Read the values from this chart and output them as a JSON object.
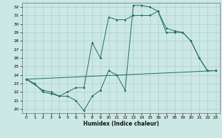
{
  "bg_color": "#cce8e5",
  "grid_color": "#aacfcc",
  "line_color": "#1a6b60",
  "xlabel": "Humidex (Indice chaleur)",
  "xlim": [
    -0.5,
    23.5
  ],
  "ylim": [
    19.5,
    32.5
  ],
  "xticks": [
    0,
    1,
    2,
    3,
    4,
    5,
    6,
    7,
    8,
    9,
    10,
    11,
    12,
    13,
    14,
    15,
    16,
    17,
    18,
    19,
    20,
    21,
    22,
    23
  ],
  "yticks": [
    20,
    21,
    22,
    23,
    24,
    25,
    26,
    27,
    28,
    29,
    30,
    31,
    32
  ],
  "line1_x": [
    0,
    1,
    2,
    3,
    4,
    5,
    6,
    7,
    8,
    9,
    10,
    11,
    12,
    13,
    14,
    15,
    16,
    17,
    18,
    19,
    20,
    21,
    22,
    23
  ],
  "line1_y": [
    23.5,
    23.0,
    22.0,
    21.8,
    21.5,
    21.5,
    21.0,
    19.8,
    21.5,
    22.2,
    24.5,
    24.0,
    22.2,
    32.2,
    32.2,
    32.0,
    31.5,
    29.0,
    29.0,
    29.0,
    28.0,
    26.0,
    24.5,
    24.5
  ],
  "line2_x": [
    0,
    2,
    3,
    4,
    5,
    6,
    7,
    8,
    9,
    10,
    11,
    12,
    13,
    14,
    15,
    16,
    17,
    18,
    19,
    20,
    21,
    22,
    23
  ],
  "line2_y": [
    23.5,
    22.2,
    22.0,
    21.5,
    22.0,
    22.5,
    22.5,
    27.8,
    26.0,
    30.8,
    30.5,
    30.5,
    31.0,
    31.0,
    31.0,
    31.5,
    29.5,
    29.2,
    29.0,
    28.0,
    26.0,
    24.5,
    24.5
  ],
  "line3_x": [
    0,
    23
  ],
  "line3_y": [
    23.5,
    24.5
  ]
}
